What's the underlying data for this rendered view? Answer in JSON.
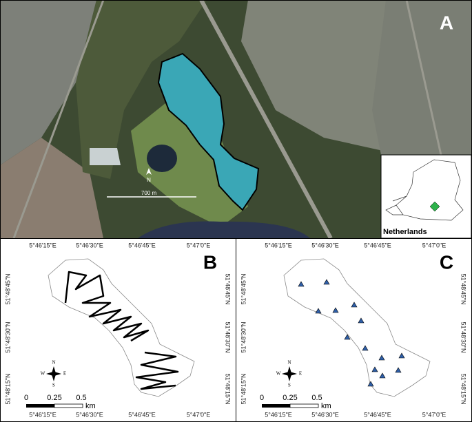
{
  "panel_a": {
    "label": "A",
    "scale_label": "700 m",
    "north": "N",
    "inset_label": "Netherlands"
  },
  "panel_b": {
    "label": "B"
  },
  "panel_c": {
    "label": "C"
  },
  "longitude_labels": [
    "5°46'15\"E",
    "5°46'30\"E",
    "5°46'45\"E",
    "5°47'0\"E"
  ],
  "latitude_labels": [
    "51°48'45\"N",
    "51°48'30\"N",
    "51°48'15\"N"
  ],
  "scale_labels": [
    "0",
    "0.25",
    "0.5"
  ],
  "scale_unit": "km",
  "compass": {
    "n": "N",
    "e": "E",
    "s": "S",
    "w": "W"
  }
}
